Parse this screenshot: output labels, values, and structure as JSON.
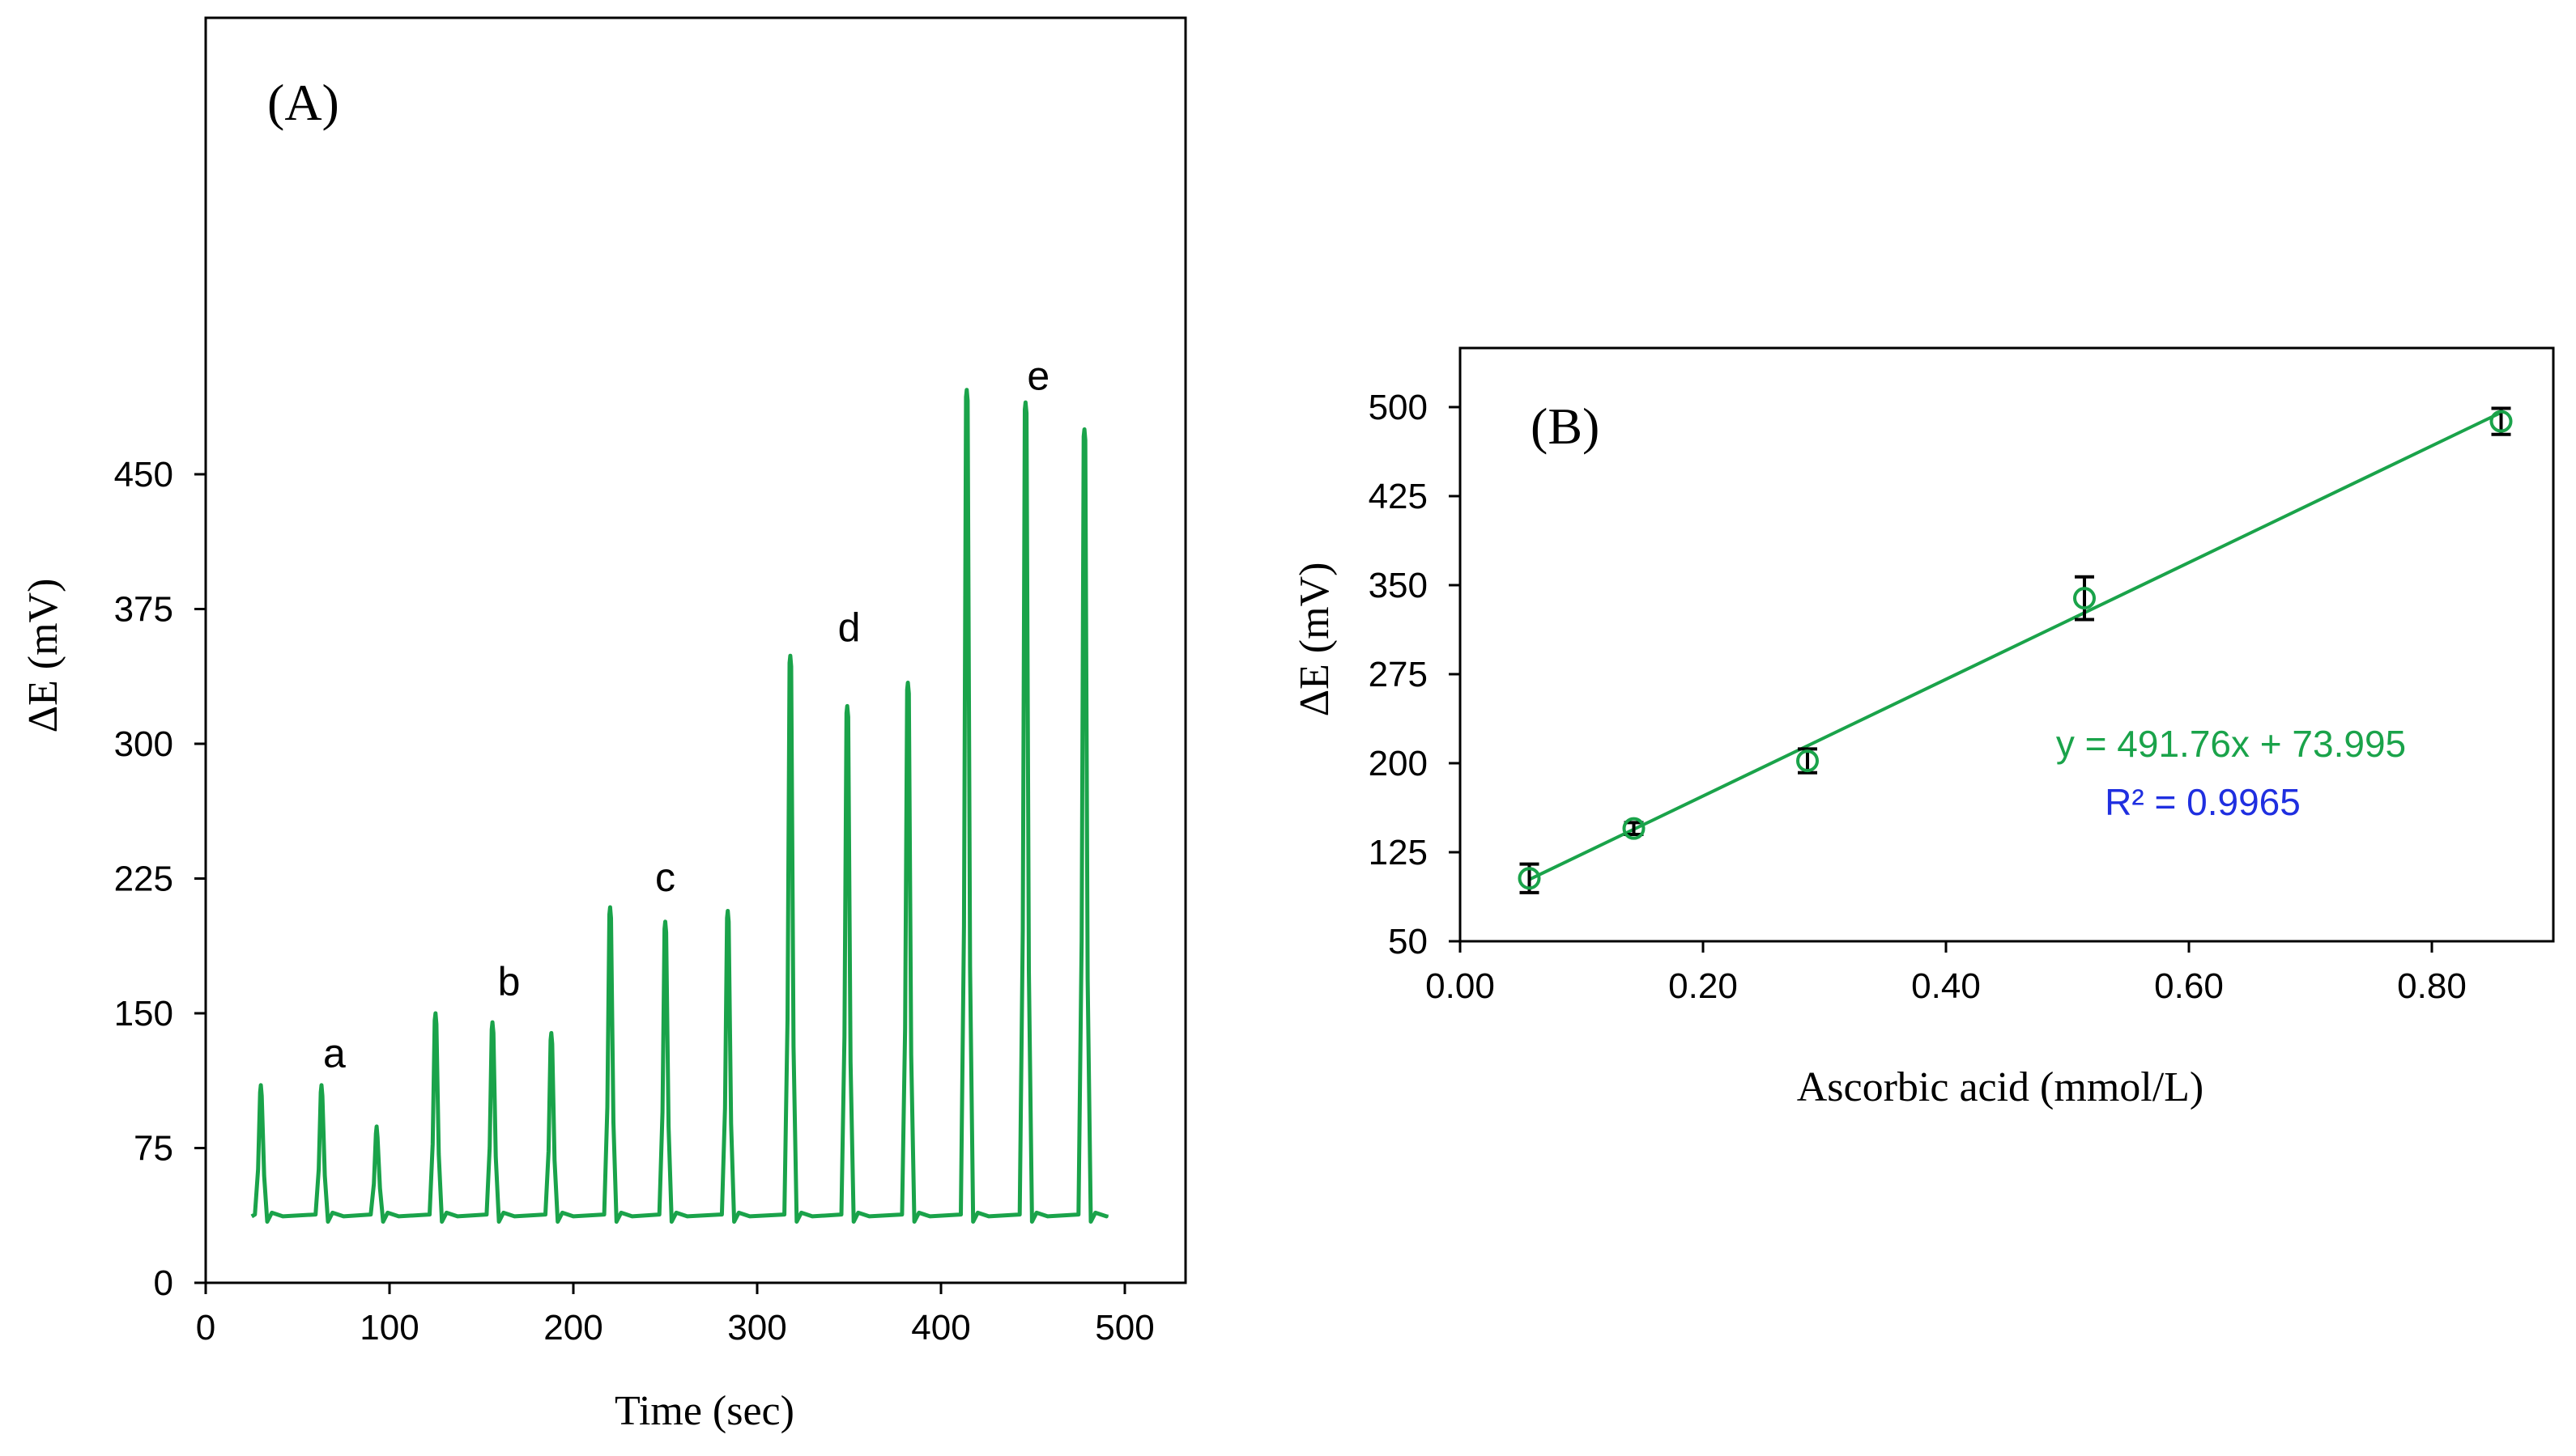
{
  "chart_data": [
    {
      "type": "line",
      "panel_label": "(A)",
      "xlabel": "Time (sec)",
      "ylabel": "ΔE (mV)",
      "xlim": [
        0,
        500
      ],
      "ylim": [
        0,
        500
      ],
      "xticks": [
        0,
        100,
        200,
        300,
        400,
        500
      ],
      "yticks": [
        0,
        75,
        150,
        225,
        300,
        375,
        450
      ],
      "grid": false,
      "color": "#1aa34a",
      "baseline": 38,
      "start_x": 25,
      "end_x": 490,
      "peaks": [
        {
          "x": 30,
          "y": 110
        },
        {
          "x": 63,
          "y": 110
        },
        {
          "x": 93,
          "y": 87
        },
        {
          "x": 125,
          "y": 150
        },
        {
          "x": 156,
          "y": 145
        },
        {
          "x": 188,
          "y": 139
        },
        {
          "x": 220,
          "y": 209
        },
        {
          "x": 250,
          "y": 201
        },
        {
          "x": 284,
          "y": 207
        },
        {
          "x": 318,
          "y": 349
        },
        {
          "x": 349,
          "y": 321
        },
        {
          "x": 382,
          "y": 334
        },
        {
          "x": 414,
          "y": 497
        },
        {
          "x": 446,
          "y": 490
        },
        {
          "x": 478,
          "y": 475
        }
      ],
      "annotations": [
        {
          "text": "a",
          "x": 70,
          "y": 120
        },
        {
          "text": "b",
          "x": 165,
          "y": 160
        },
        {
          "text": "c",
          "x": 250,
          "y": 218
        },
        {
          "text": "d",
          "x": 350,
          "y": 357
        },
        {
          "text": "e",
          "x": 453,
          "y": 497
        }
      ]
    },
    {
      "type": "scatter",
      "panel_label": "(B)",
      "xlabel": "Ascorbic acid (mmol/L)",
      "ylabel": "ΔE (mV)",
      "xlim": [
        0.0,
        0.9
      ],
      "ylim": [
        50,
        550
      ],
      "xticks": [
        "0.00",
        "0.20",
        "0.40",
        "0.60",
        "0.80"
      ],
      "xtick_values": [
        0.0,
        0.2,
        0.4,
        0.6,
        0.8
      ],
      "yticks": [
        50,
        125,
        200,
        275,
        350,
        425,
        500
      ],
      "grid": false,
      "color": "#1aa34a",
      "x": [
        0.057,
        0.143,
        0.286,
        0.514,
        0.857
      ],
      "y": [
        103,
        145,
        202,
        339,
        488
      ],
      "yerr": [
        12,
        5,
        10,
        18,
        11
      ],
      "trendline": {
        "slope": 491.76,
        "intercept": 73.995,
        "x_range": [
          0.057,
          0.857
        ]
      },
      "equation": "y = 491.76x + 73.995",
      "r_squared": "R² = 0.9965"
    }
  ]
}
